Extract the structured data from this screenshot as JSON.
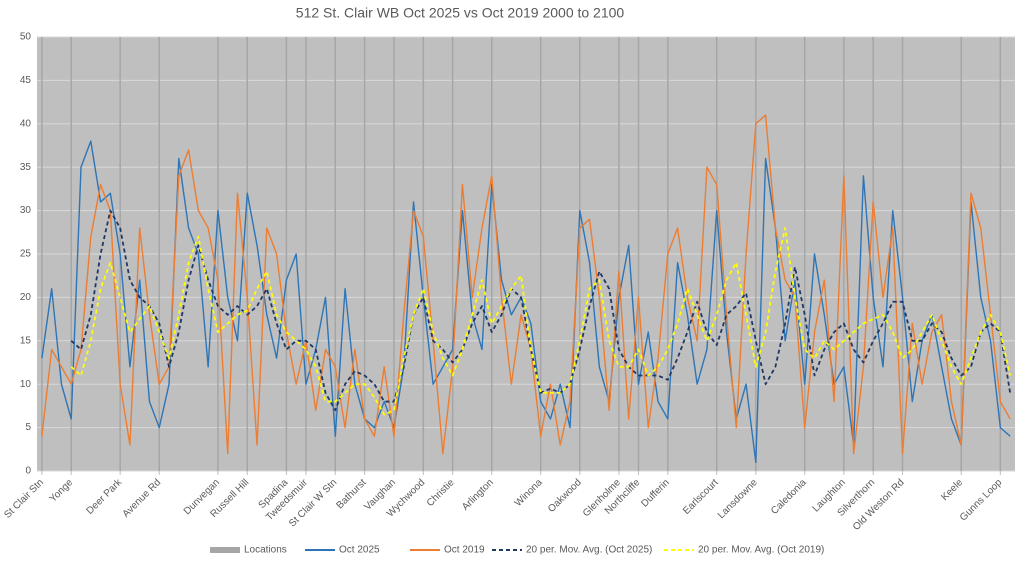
{
  "chart_data": {
    "type": "line",
    "title": "512 St. Clair WB Oct 2025 vs Oct 2019 2000 to 2100",
    "categories": [
      "St Clair Stn",
      null,
      null,
      "Yonge",
      null,
      null,
      null,
      null,
      "Deer Park",
      null,
      null,
      null,
      "Avenue Rd",
      null,
      null,
      null,
      null,
      null,
      "Dunvegan",
      null,
      null,
      "Russell Hill",
      null,
      null,
      null,
      "Spadina",
      null,
      "Tweedsmuir",
      null,
      null,
      "St Clair W Stn",
      null,
      null,
      "Bathurst",
      null,
      null,
      "Vaughan",
      null,
      null,
      "Wychwood",
      null,
      null,
      "Christie",
      null,
      null,
      null,
      "Arlington",
      null,
      null,
      null,
      null,
      "Winona",
      null,
      null,
      null,
      "Oakwood",
      null,
      null,
      null,
      "Glenholme",
      null,
      "Northcliffe",
      null,
      null,
      "Dufferin",
      null,
      null,
      null,
      null,
      "Earlscourt",
      null,
      null,
      null,
      "Lansdowne",
      null,
      null,
      null,
      null,
      "Caledonia",
      null,
      null,
      null,
      "Laughton",
      null,
      null,
      "Silverthorn",
      null,
      null,
      "Old Weston Rd",
      null,
      null,
      null,
      null,
      null,
      "Keele",
      null,
      null,
      null,
      "Gunns Loop",
      null
    ],
    "ylim": [
      0,
      50
    ],
    "yticks": [
      0,
      5,
      10,
      15,
      20,
      25,
      30,
      35,
      40,
      45,
      50
    ],
    "grid": true,
    "series": [
      {
        "name": "Locations",
        "type": "bar",
        "color": "#a6a6a6",
        "values": [
          50,
          null,
          null,
          50,
          null,
          null,
          null,
          null,
          50,
          null,
          null,
          null,
          50,
          null,
          null,
          null,
          null,
          null,
          50,
          null,
          null,
          50,
          null,
          null,
          null,
          50,
          null,
          50,
          null,
          null,
          50,
          null,
          null,
          50,
          null,
          null,
          50,
          null,
          null,
          50,
          null,
          null,
          50,
          null,
          null,
          null,
          50,
          null,
          null,
          null,
          null,
          50,
          null,
          null,
          null,
          50,
          null,
          null,
          null,
          50,
          null,
          50,
          null,
          null,
          50,
          null,
          null,
          null,
          null,
          50,
          null,
          null,
          null,
          50,
          null,
          null,
          null,
          null,
          50,
          null,
          null,
          null,
          50,
          null,
          null,
          50,
          null,
          null,
          50,
          null,
          null,
          null,
          null,
          null,
          50,
          null,
          null,
          null,
          50,
          null
        ]
      },
      {
        "name": "Oct 2025",
        "type": "line",
        "color": "#2e75b6",
        "values": [
          13,
          21,
          10,
          6,
          35,
          38,
          31,
          32,
          25,
          12,
          22,
          8,
          5,
          10,
          36,
          28,
          25,
          12,
          30,
          20,
          15,
          32,
          26,
          18,
          13,
          22,
          25,
          10,
          14,
          20,
          4,
          21,
          10,
          6,
          5,
          8,
          5,
          12,
          31,
          20,
          10,
          12,
          14,
          30,
          18,
          14,
          33,
          22,
          18,
          20,
          17,
          8,
          6,
          10,
          5,
          30,
          24,
          12,
          8,
          20,
          26,
          10,
          16,
          8,
          6,
          24,
          18,
          10,
          14,
          30,
          16,
          6,
          10,
          1,
          36,
          28,
          15,
          22,
          10,
          25,
          18,
          10,
          12,
          3,
          34,
          20,
          12,
          30,
          20,
          8,
          15,
          18,
          12,
          6,
          3,
          31,
          20,
          15,
          5,
          4
        ]
      },
      {
        "name": "Oct 2019",
        "type": "line",
        "color": "#ed7d31",
        "values": [
          4,
          14,
          12,
          10,
          14,
          27,
          33,
          30,
          10,
          3,
          28,
          18,
          10,
          12,
          34,
          37,
          30,
          28,
          22,
          2,
          32,
          20,
          3,
          28,
          25,
          16,
          10,
          15,
          7,
          14,
          12,
          5,
          14,
          6,
          4,
          12,
          4,
          18,
          30,
          27,
          15,
          2,
          12,
          33,
          20,
          28,
          34,
          20,
          10,
          18,
          14,
          4,
          10,
          3,
          8,
          28,
          29,
          20,
          7,
          23,
          6,
          20,
          5,
          13,
          25,
          28,
          20,
          15,
          35,
          33,
          18,
          5,
          25,
          40,
          41,
          28,
          22,
          20,
          5,
          16,
          22,
          8,
          34,
          2,
          12,
          31,
          20,
          28,
          2,
          17,
          10,
          16,
          18,
          8,
          3,
          32,
          28,
          18,
          8,
          6
        ]
      },
      {
        "name": "20 per. Mov. Avg. (Oct 2025)",
        "type": "line",
        "color": "#1f3864",
        "dashed": true,
        "values": [
          null,
          null,
          null,
          15,
          14,
          18,
          25,
          30,
          28,
          22,
          20,
          19,
          17,
          12,
          16,
          22,
          26,
          22,
          19,
          18,
          19,
          18,
          19,
          21,
          17,
          14,
          15,
          15,
          14,
          9,
          7,
          10,
          11.5,
          11,
          10,
          8,
          8,
          12,
          18,
          20,
          15,
          14,
          12.5,
          14,
          17,
          19,
          16,
          18,
          21,
          20,
          14,
          9,
          9.5,
          9,
          10,
          14,
          19,
          23,
          21,
          14,
          12,
          11,
          11,
          11,
          10.5,
          13,
          16,
          19.5,
          16,
          14.5,
          18,
          19,
          20.5,
          15,
          10,
          12,
          17,
          23.5,
          18,
          11,
          14,
          16,
          17,
          14,
          12.5,
          15,
          17,
          19.5,
          19.5,
          15,
          15,
          17,
          16,
          13,
          11,
          12,
          16,
          17,
          16,
          9
        ]
      },
      {
        "name": "20 per. Mov. Avg. (Oct 2019)",
        "type": "line",
        "color": "#ffff00",
        "dashed": true,
        "values": [
          null,
          null,
          null,
          12,
          11,
          15,
          21,
          24,
          20,
          16,
          17.5,
          19,
          16,
          13,
          18,
          24,
          27,
          21,
          16,
          17,
          18,
          18.5,
          21,
          23,
          18,
          16,
          15,
          14,
          12,
          8,
          8,
          9,
          10,
          10,
          8.5,
          6.5,
          7,
          13,
          18,
          21,
          16,
          13,
          11,
          14,
          18,
          22,
          17,
          19,
          21,
          22.5,
          14,
          9,
          9,
          9,
          10,
          15,
          21,
          22,
          15,
          12,
          12,
          14,
          11,
          12,
          14,
          17,
          21,
          18,
          15,
          18,
          22,
          24,
          18,
          12,
          16,
          23,
          28,
          20,
          14,
          13,
          15,
          14,
          15,
          16,
          17,
          17.5,
          18,
          16,
          13,
          14,
          16,
          18,
          15,
          12,
          10,
          13,
          16,
          18,
          16,
          11
        ]
      }
    ]
  }
}
